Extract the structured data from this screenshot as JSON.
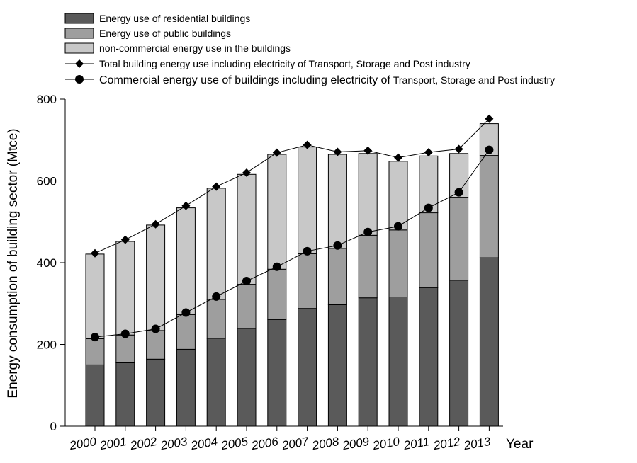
{
  "chart_data": {
    "type": "bar",
    "stacked": true,
    "categories": [
      "2000",
      "2001",
      "2002",
      "2003",
      "2004",
      "2005",
      "2006",
      "2007",
      "2008",
      "2009",
      "2010",
      "2011",
      "2012",
      "2013"
    ],
    "series": [
      {
        "name": "Energy use of residential buildings",
        "color": "#5a5a5a",
        "values": [
          150,
          155,
          164,
          188,
          215,
          239,
          261,
          288,
          297,
          314,
          316,
          339,
          357,
          412
        ]
      },
      {
        "name": "Energy use of public buildings",
        "color": "#9e9e9e",
        "values": [
          64,
          68,
          70,
          85,
          95,
          108,
          123,
          134,
          138,
          153,
          164,
          183,
          203,
          250
        ]
      },
      {
        "name": "non-commercial energy use in the buildings",
        "color": "#c8c8c8",
        "values": [
          207,
          229,
          258,
          261,
          272,
          269,
          281,
          261,
          230,
          200,
          168,
          139,
          107,
          78
        ]
      }
    ],
    "lines": [
      {
        "name": "Total building energy use including electricity of Transport, Storage and Post industry",
        "name_main": "Total building energy use including electricity of Transport, Storage and Post industry",
        "marker": "diamond",
        "values": [
          423,
          456,
          494,
          539,
          586,
          620,
          669,
          688,
          671,
          674,
          657,
          670,
          678,
          752
        ]
      },
      {
        "name": "Commercial energy use  of buildings including electricity of Transport, Storage and Post industry",
        "name_main": "Commercial energy use  of buildings including electricity of",
        "name_tail": "Transport, Storage and Post industry",
        "marker": "circle",
        "values": [
          218,
          226,
          238,
          278,
          317,
          355,
          390,
          428,
          442,
          475,
          489,
          534,
          572,
          676
        ]
      }
    ],
    "title": "",
    "xlabel": "Year",
    "ylabel": "Energy consumption of building sector (Mtce)",
    "ylim": [
      0,
      800
    ],
    "yticks": [
      "0",
      "200",
      "400",
      "600",
      "800"
    ],
    "ytick_values": [
      0,
      200,
      400,
      600,
      800
    ],
    "legend_position": "top"
  }
}
